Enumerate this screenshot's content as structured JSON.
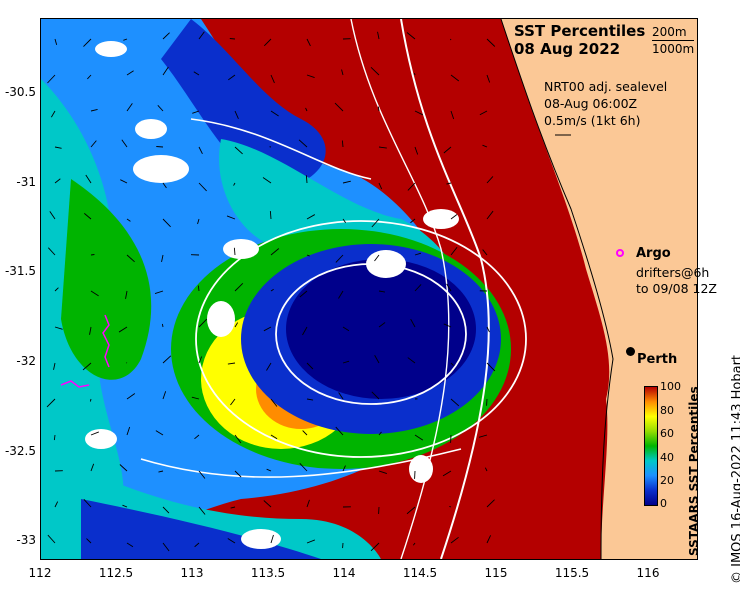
{
  "map": {
    "title": "SST Percentiles",
    "date": "08 Aug 2022",
    "depth_contours": [
      "200m",
      "1000m"
    ],
    "sea_level_info": [
      "NRT00 adj. sealevel",
      "08-Aug 06:00Z",
      "0.5m/s (1kt 6h)"
    ],
    "argo_label": "Argo",
    "drifters_label": [
      "drifters@6h",
      "to 09/08 12Z"
    ],
    "place_label": "Perth",
    "y_axis_ticks": [
      "-30.5",
      "-31",
      "-31.5",
      "-32",
      "-32.5",
      "-33"
    ],
    "x_axis_ticks": [
      "112",
      "112.5",
      "113",
      "113.5",
      "114",
      "114.5",
      "115",
      "115.5",
      "116"
    ],
    "colorbar_ticks": [
      "100",
      "80",
      "60",
      "40",
      "20",
      "0"
    ],
    "colorbar_title": "SSTAARS SST Percentiles",
    "credit": "© IMOS 16-Aug-2022 11:43 Hobart",
    "colors": {
      "land": "#fbc896",
      "p0": "#00008b",
      "p10": "#0a2fcc",
      "p25": "#1e90ff",
      "p35": "#00c8c8",
      "p50": "#00b400",
      "p60": "#96dc00",
      "p70": "#ffff00",
      "p80": "#ff8c00",
      "p95": "#b40000",
      "cloud": "#ffffff"
    }
  }
}
